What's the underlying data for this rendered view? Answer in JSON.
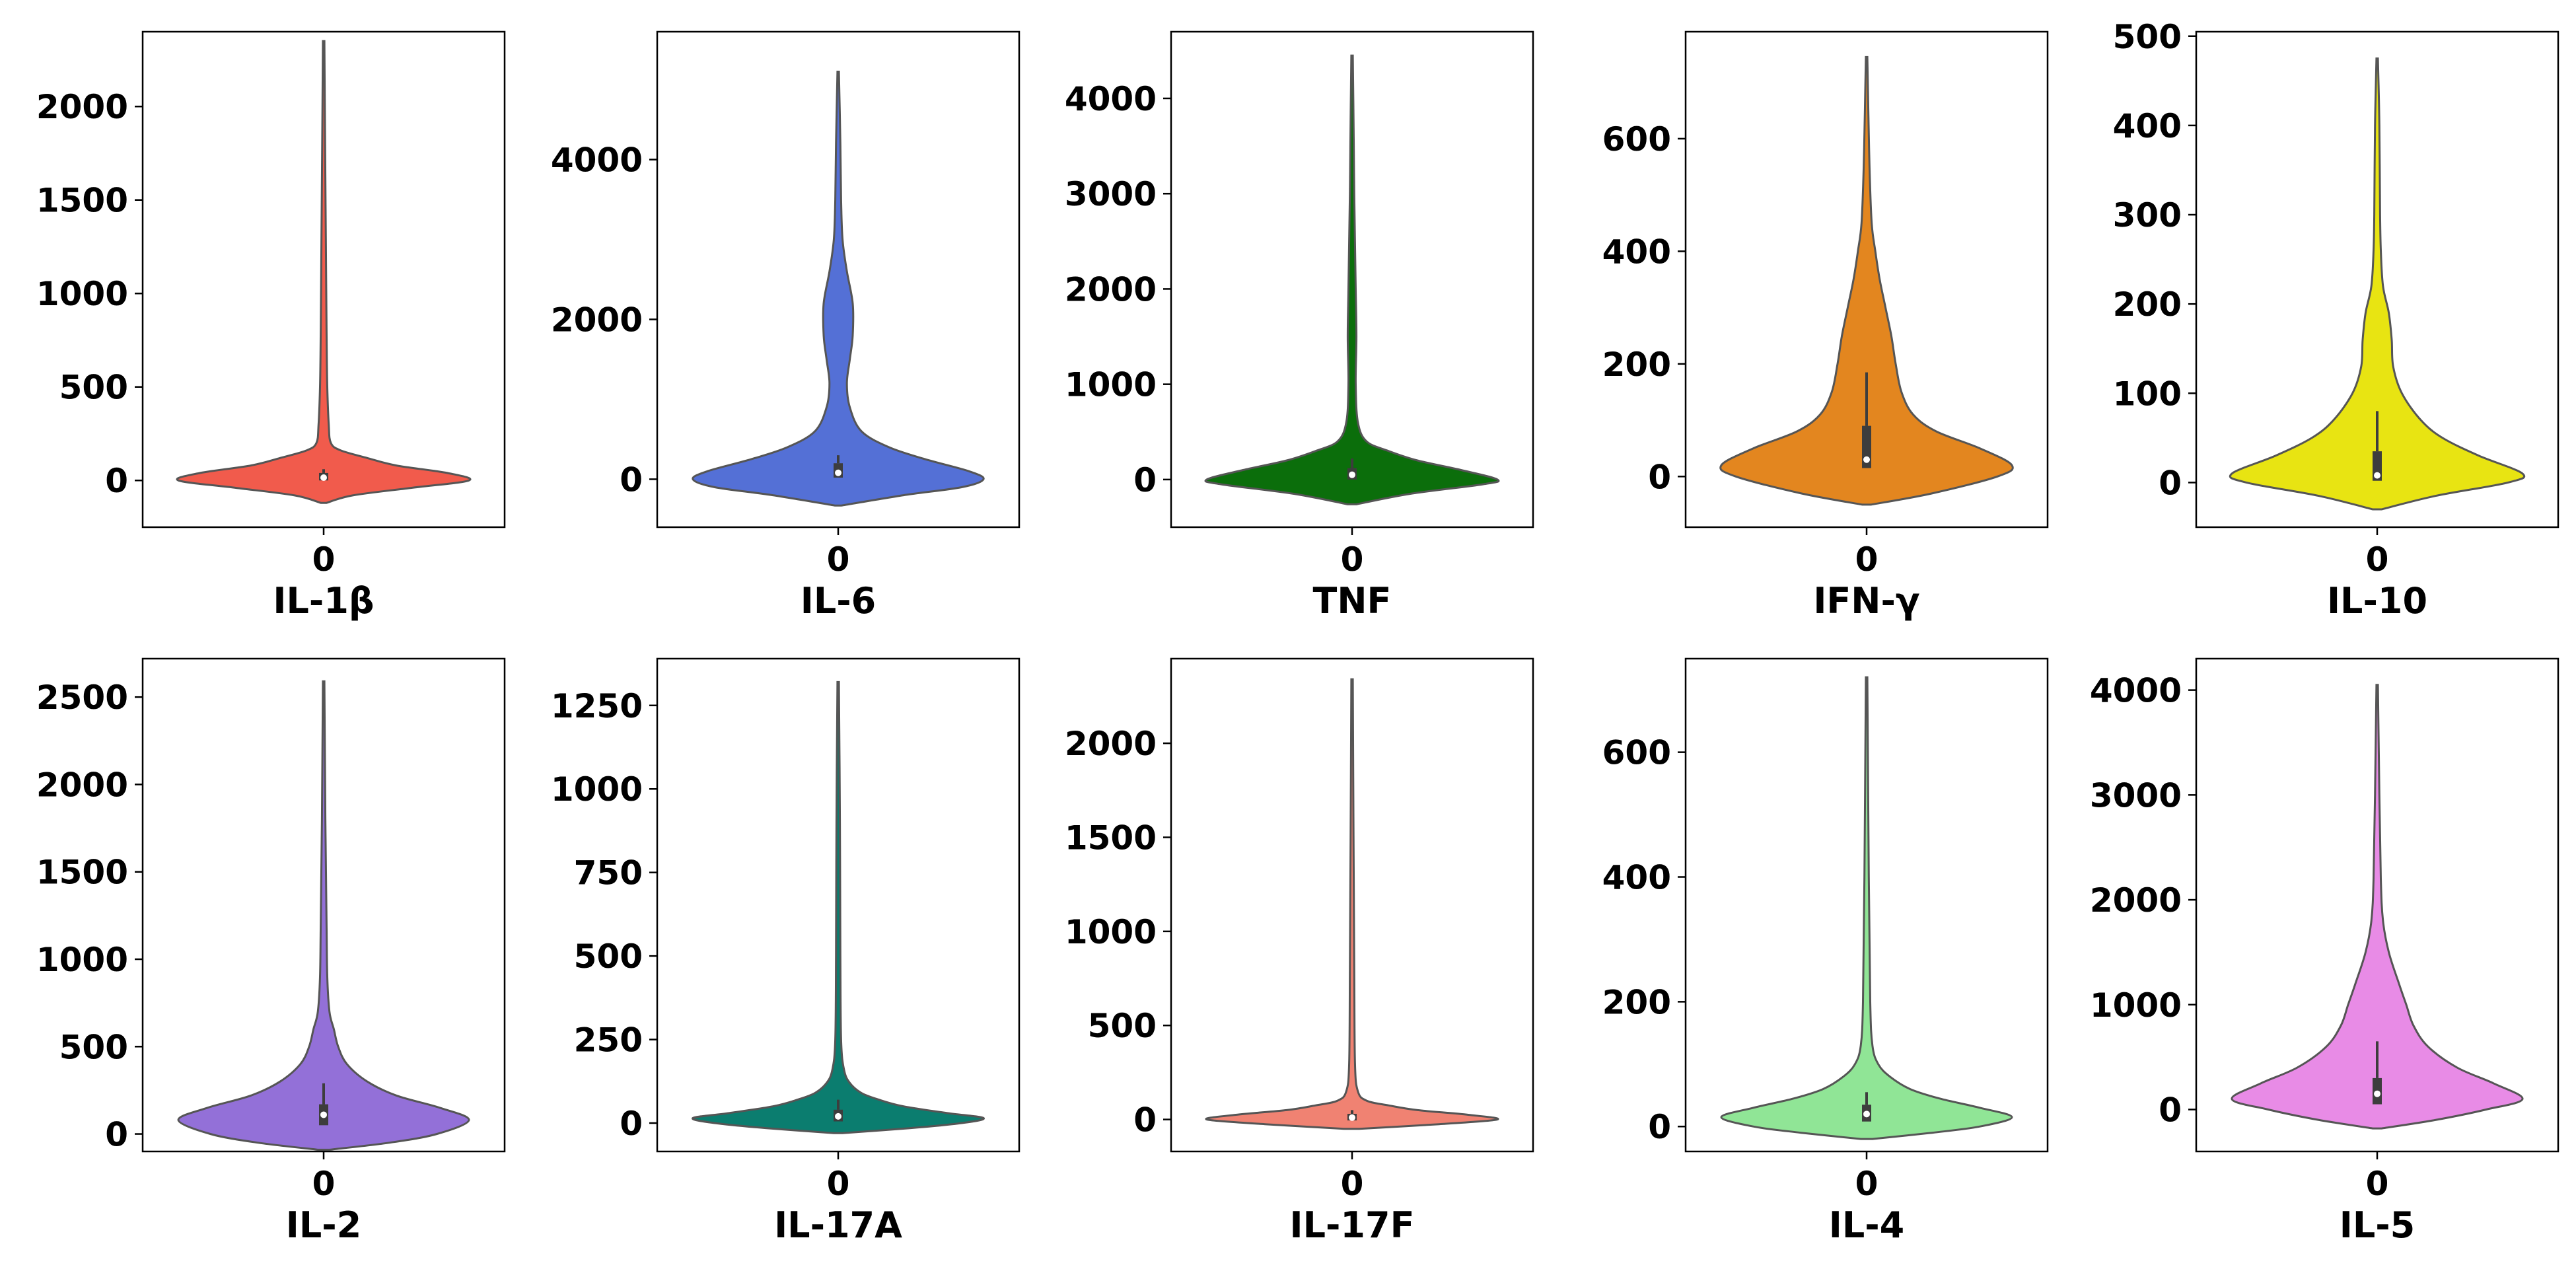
{
  "chart_data": [
    {
      "type": "violin",
      "xlabel": "IL-1β",
      "category": "0",
      "color": "#f15b4c",
      "ylim": [
        -250,
        2400
      ],
      "yticks": [
        0,
        500,
        1000,
        1500,
        2000
      ],
      "max": 2350,
      "min": -120,
      "q1": 0,
      "median": 15,
      "q3": 40,
      "whisker_high": 60,
      "density": [
        [
          -120,
          0.02
        ],
        [
          -80,
          0.2
        ],
        [
          -40,
          0.6
        ],
        [
          0,
          1.0
        ],
        [
          40,
          0.85
        ],
        [
          80,
          0.5
        ],
        [
          120,
          0.3
        ],
        [
          160,
          0.12
        ],
        [
          200,
          0.05
        ],
        [
          300,
          0.035
        ],
        [
          500,
          0.025
        ],
        [
          800,
          0.02
        ],
        [
          1300,
          0.015
        ],
        [
          1800,
          0.01
        ],
        [
          2350,
          0.005
        ]
      ]
    },
    {
      "type": "violin",
      "xlabel": "IL-6",
      "category": "0",
      "color": "#5470d6",
      "ylim": [
        -600,
        5600
      ],
      "yticks": [
        0,
        2000,
        4000
      ],
      "max": 5100,
      "min": -330,
      "q1": 20,
      "median": 80,
      "q3": 200,
      "whisker_high": 300,
      "density": [
        [
          -330,
          0.02
        ],
        [
          -200,
          0.45
        ],
        [
          -100,
          0.85
        ],
        [
          0,
          1.0
        ],
        [
          100,
          0.9
        ],
        [
          250,
          0.6
        ],
        [
          400,
          0.35
        ],
        [
          600,
          0.16
        ],
        [
          900,
          0.08
        ],
        [
          1200,
          0.06
        ],
        [
          1500,
          0.08
        ],
        [
          1800,
          0.1
        ],
        [
          2200,
          0.1
        ],
        [
          2600,
          0.06
        ],
        [
          3000,
          0.03
        ],
        [
          3500,
          0.02
        ],
        [
          4200,
          0.015
        ],
        [
          5100,
          0.005
        ]
      ]
    },
    {
      "type": "violin",
      "xlabel": "TNF",
      "category": "0",
      "color": "#0b6e0b",
      "ylim": [
        -500,
        4700
      ],
      "yticks": [
        0,
        1000,
        2000,
        3000,
        4000
      ],
      "max": 4450,
      "min": -260,
      "q1": 0,
      "median": 50,
      "q3": 120,
      "whisker_high": 220,
      "density": [
        [
          -260,
          0.03
        ],
        [
          -150,
          0.4
        ],
        [
          -50,
          0.9
        ],
        [
          0,
          1.0
        ],
        [
          100,
          0.75
        ],
        [
          200,
          0.45
        ],
        [
          300,
          0.25
        ],
        [
          400,
          0.1
        ],
        [
          600,
          0.04
        ],
        [
          1000,
          0.025
        ],
        [
          1500,
          0.03
        ],
        [
          2000,
          0.025
        ],
        [
          3000,
          0.015
        ],
        [
          3500,
          0.012
        ],
        [
          4450,
          0.005
        ]
      ]
    },
    {
      "type": "violin",
      "xlabel": "IFN-γ",
      "category": "0",
      "color": "#e3861f",
      "ylim": [
        -90,
        790
      ],
      "yticks": [
        0,
        200,
        400,
        600
      ],
      "max": 745,
      "min": -50,
      "q1": 15,
      "median": 30,
      "q3": 90,
      "whisker_high": 185,
      "density": [
        [
          -50,
          0.03
        ],
        [
          -30,
          0.45
        ],
        [
          0,
          0.9
        ],
        [
          20,
          1.0
        ],
        [
          50,
          0.78
        ],
        [
          80,
          0.48
        ],
        [
          110,
          0.32
        ],
        [
          150,
          0.24
        ],
        [
          200,
          0.2
        ],
        [
          250,
          0.17
        ],
        [
          300,
          0.13
        ],
        [
          350,
          0.09
        ],
        [
          400,
          0.06
        ],
        [
          450,
          0.035
        ],
        [
          550,
          0.02
        ],
        [
          650,
          0.012
        ],
        [
          745,
          0.005
        ]
      ]
    },
    {
      "type": "violin",
      "xlabel": "IL-10",
      "category": "0",
      "color": "#e8e412",
      "ylim": [
        -50,
        505
      ],
      "yticks": [
        0,
        100,
        200,
        300,
        400,
        500
      ],
      "max": 475,
      "min": -30,
      "q1": 2,
      "median": 8,
      "q3": 35,
      "whisker_high": 80,
      "density": [
        [
          -30,
          0.03
        ],
        [
          -15,
          0.4
        ],
        [
          0,
          0.9
        ],
        [
          10,
          1.0
        ],
        [
          30,
          0.7
        ],
        [
          50,
          0.45
        ],
        [
          70,
          0.3
        ],
        [
          100,
          0.17
        ],
        [
          130,
          0.11
        ],
        [
          160,
          0.1
        ],
        [
          190,
          0.08
        ],
        [
          220,
          0.04
        ],
        [
          260,
          0.025
        ],
        [
          300,
          0.02
        ],
        [
          400,
          0.015
        ],
        [
          475,
          0.005
        ]
      ]
    },
    {
      "type": "violin",
      "xlabel": "IL-2",
      "category": "0",
      "color": "#9370d8",
      "ylim": [
        -100,
        2720
      ],
      "yticks": [
        0,
        500,
        1000,
        1500,
        2000,
        2500
      ],
      "max": 2590,
      "min": -90,
      "q1": 50,
      "median": 110,
      "q3": 170,
      "whisker_high": 290,
      "density": [
        [
          -90,
          0.04
        ],
        [
          -50,
          0.45
        ],
        [
          0,
          0.78
        ],
        [
          80,
          1.0
        ],
        [
          150,
          0.8
        ],
        [
          220,
          0.5
        ],
        [
          300,
          0.3
        ],
        [
          400,
          0.16
        ],
        [
          500,
          0.1
        ],
        [
          600,
          0.07
        ],
        [
          700,
          0.04
        ],
        [
          900,
          0.025
        ],
        [
          1200,
          0.02
        ],
        [
          1800,
          0.012
        ],
        [
          2590,
          0.005
        ]
      ]
    },
    {
      "type": "violin",
      "xlabel": "IL-17A",
      "category": "0",
      "color": "#0b7d6f",
      "ylim": [
        -85,
        1390
      ],
      "yticks": [
        0,
        250,
        500,
        750,
        1000,
        1250
      ],
      "max": 1320,
      "min": -30,
      "q1": 5,
      "median": 20,
      "q3": 40,
      "whisker_high": 70,
      "density": [
        [
          -30,
          0.03
        ],
        [
          -15,
          0.5
        ],
        [
          0,
          0.85
        ],
        [
          15,
          1.0
        ],
        [
          30,
          0.75
        ],
        [
          50,
          0.45
        ],
        [
          70,
          0.28
        ],
        [
          90,
          0.16
        ],
        [
          120,
          0.08
        ],
        [
          160,
          0.04
        ],
        [
          250,
          0.02
        ],
        [
          500,
          0.015
        ],
        [
          900,
          0.012
        ],
        [
          1320,
          0.005
        ]
      ]
    },
    {
      "type": "violin",
      "xlabel": "IL-17F",
      "category": "0",
      "color": "#f08272",
      "ylim": [
        -170,
        2450
      ],
      "yticks": [
        0,
        500,
        1000,
        1500,
        2000
      ],
      "max": 2340,
      "min": -50,
      "q1": -5,
      "median": 10,
      "q3": 30,
      "whisker_high": 50,
      "density": [
        [
          -50,
          0.05
        ],
        [
          -25,
          0.6
        ],
        [
          0,
          1.0
        ],
        [
          25,
          0.8
        ],
        [
          50,
          0.45
        ],
        [
          75,
          0.25
        ],
        [
          100,
          0.1
        ],
        [
          150,
          0.04
        ],
        [
          300,
          0.02
        ],
        [
          800,
          0.015
        ],
        [
          1500,
          0.01
        ],
        [
          2340,
          0.005
        ]
      ]
    },
    {
      "type": "violin",
      "xlabel": "IL-4",
      "category": "0",
      "color": "#90e596",
      "ylim": [
        -40,
        750
      ],
      "yticks": [
        0,
        200,
        400,
        600
      ],
      "max": 720,
      "min": -20,
      "q1": 8,
      "median": 20,
      "q3": 35,
      "whisker_high": 55,
      "density": [
        [
          -20,
          0.04
        ],
        [
          -10,
          0.45
        ],
        [
          0,
          0.78
        ],
        [
          15,
          1.0
        ],
        [
          30,
          0.78
        ],
        [
          45,
          0.5
        ],
        [
          60,
          0.3
        ],
        [
          80,
          0.16
        ],
        [
          100,
          0.08
        ],
        [
          130,
          0.04
        ],
        [
          200,
          0.025
        ],
        [
          400,
          0.015
        ],
        [
          720,
          0.005
        ]
      ]
    },
    {
      "type": "violin",
      "xlabel": "IL-5",
      "category": "0",
      "color": "#e88be6",
      "ylim": [
        -400,
        4300
      ],
      "yticks": [
        0,
        1000,
        2000,
        3000,
        4000
      ],
      "max": 4050,
      "min": -180,
      "q1": 50,
      "median": 150,
      "q3": 300,
      "whisker_high": 650,
      "density": [
        [
          -180,
          0.03
        ],
        [
          -100,
          0.4
        ],
        [
          0,
          0.75
        ],
        [
          100,
          1.0
        ],
        [
          250,
          0.8
        ],
        [
          400,
          0.55
        ],
        [
          600,
          0.35
        ],
        [
          800,
          0.25
        ],
        [
          1000,
          0.2
        ],
        [
          1200,
          0.15
        ],
        [
          1500,
          0.08
        ],
        [
          1800,
          0.04
        ],
        [
          2200,
          0.025
        ],
        [
          3000,
          0.015
        ],
        [
          4050,
          0.005
        ]
      ]
    }
  ]
}
